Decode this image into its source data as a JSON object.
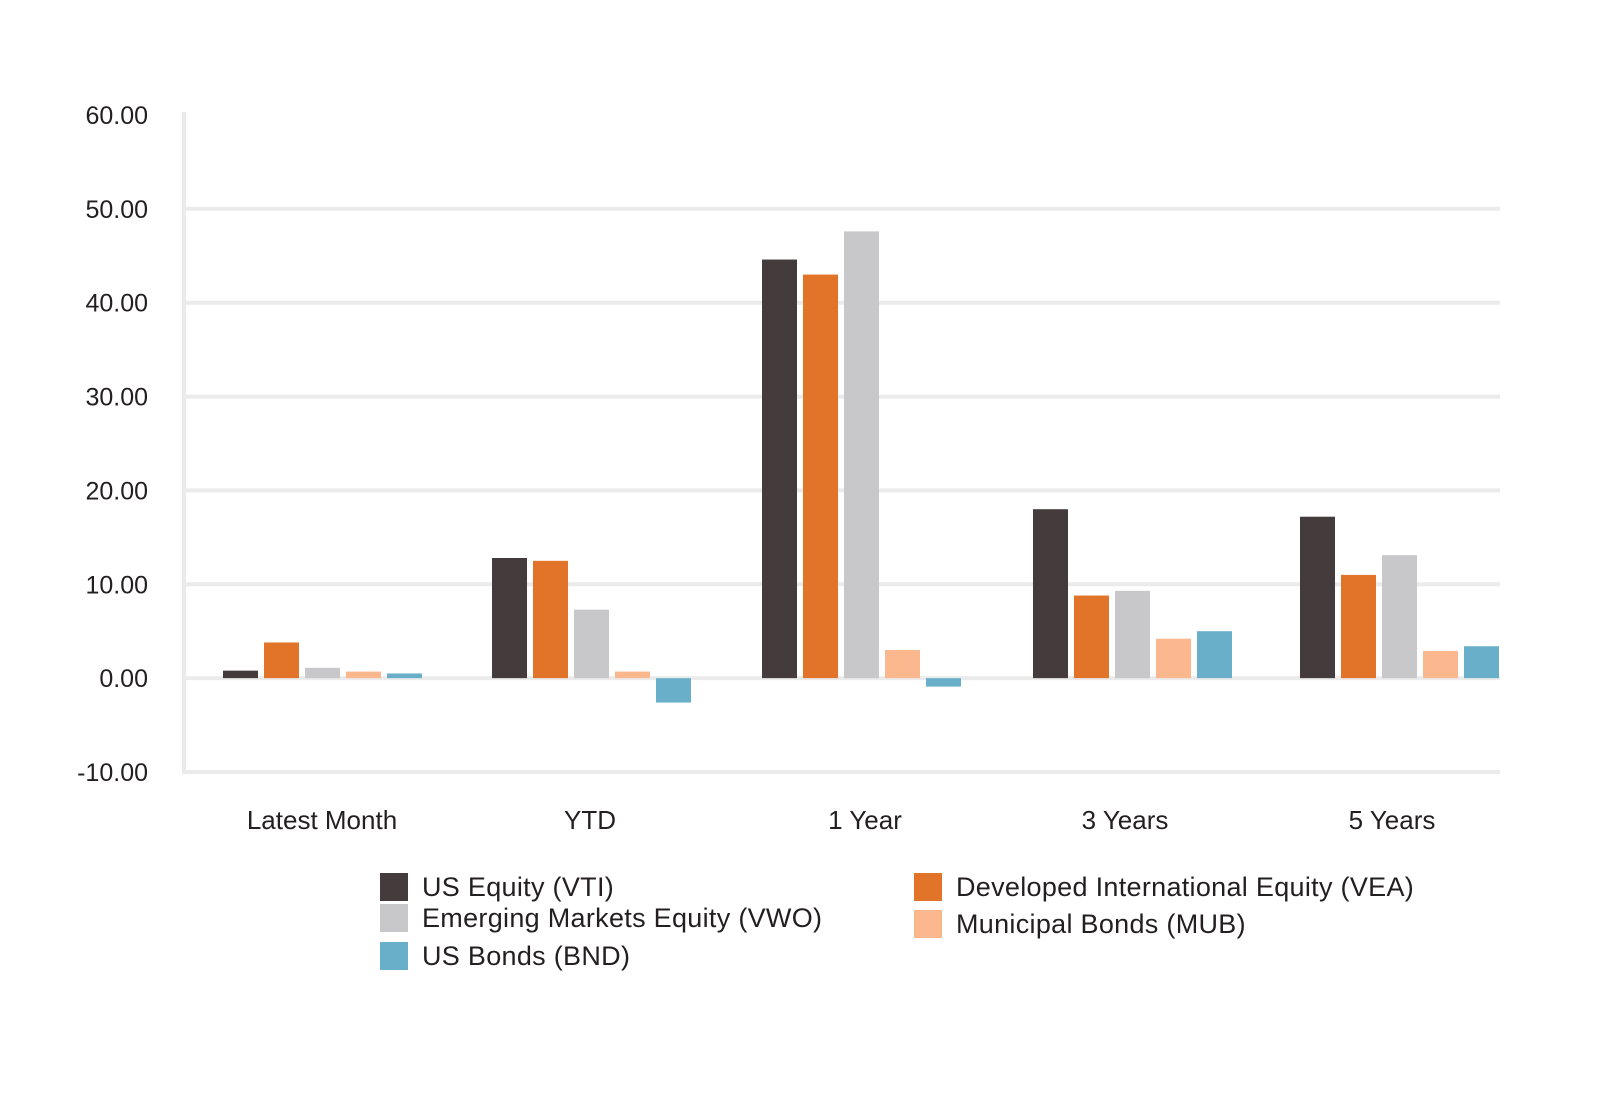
{
  "chart_data": {
    "type": "bar",
    "categories": [
      "Latest Month",
      "YTD",
      "1 Year",
      "3 Years",
      "5 Years"
    ],
    "series": [
      {
        "name": "US Equity (VTI)",
        "color": "#433b3c",
        "values": [
          0.8,
          12.8,
          44.6,
          18.0,
          17.2
        ]
      },
      {
        "name": "Developed International Equity (VEA)",
        "color": "#e2742a",
        "values": [
          3.8,
          12.5,
          43.0,
          8.8,
          11.0
        ]
      },
      {
        "name": "Emerging Markets Equity (VWO)",
        "color": "#c8c8ca",
        "values": [
          1.1,
          7.3,
          47.6,
          9.3,
          13.1
        ]
      },
      {
        "name": "Municipal Bonds (MUB)",
        "color": "#fbb88e",
        "values": [
          0.7,
          0.7,
          3.0,
          4.2,
          2.9
        ]
      },
      {
        "name": "US Bonds (BND)",
        "color": "#6aafca",
        "values": [
          0.5,
          -2.6,
          -0.9,
          5.0,
          3.4
        ]
      }
    ],
    "yticks": [
      "60.00",
      "50.00",
      "40.00",
      "30.00",
      "20.00",
      "10.00",
      "0.00",
      "-10.00"
    ],
    "ylim": [
      -10,
      60
    ],
    "grid": true,
    "legend_position": "bottom"
  }
}
